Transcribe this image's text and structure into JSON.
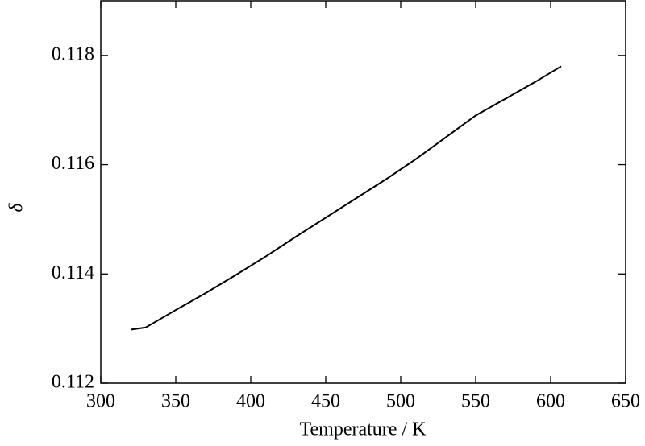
{
  "chart_data": {
    "type": "line",
    "x_label": "Temperature / K",
    "y_label": "δ",
    "x": [
      320,
      330,
      340,
      350,
      370,
      390,
      410,
      430,
      450,
      470,
      490,
      510,
      530,
      550,
      570,
      590,
      607
    ],
    "series": [
      {
        "color": "#000000",
        "values": [
          0.11298,
          0.11302,
          0.11318,
          0.11334,
          0.11365,
          0.11398,
          0.11432,
          0.11468,
          0.11503,
          0.11538,
          0.11573,
          0.1161,
          0.1165,
          0.1169,
          0.11721,
          0.11752,
          0.1178
        ]
      }
    ],
    "xlim": [
      300,
      650
    ],
    "xticks": [
      300,
      350,
      400,
      450,
      500,
      550,
      600,
      650
    ],
    "ylim": [
      0.112,
      0.119
    ],
    "yticks": [
      0.112,
      0.114,
      0.116,
      0.118
    ]
  }
}
